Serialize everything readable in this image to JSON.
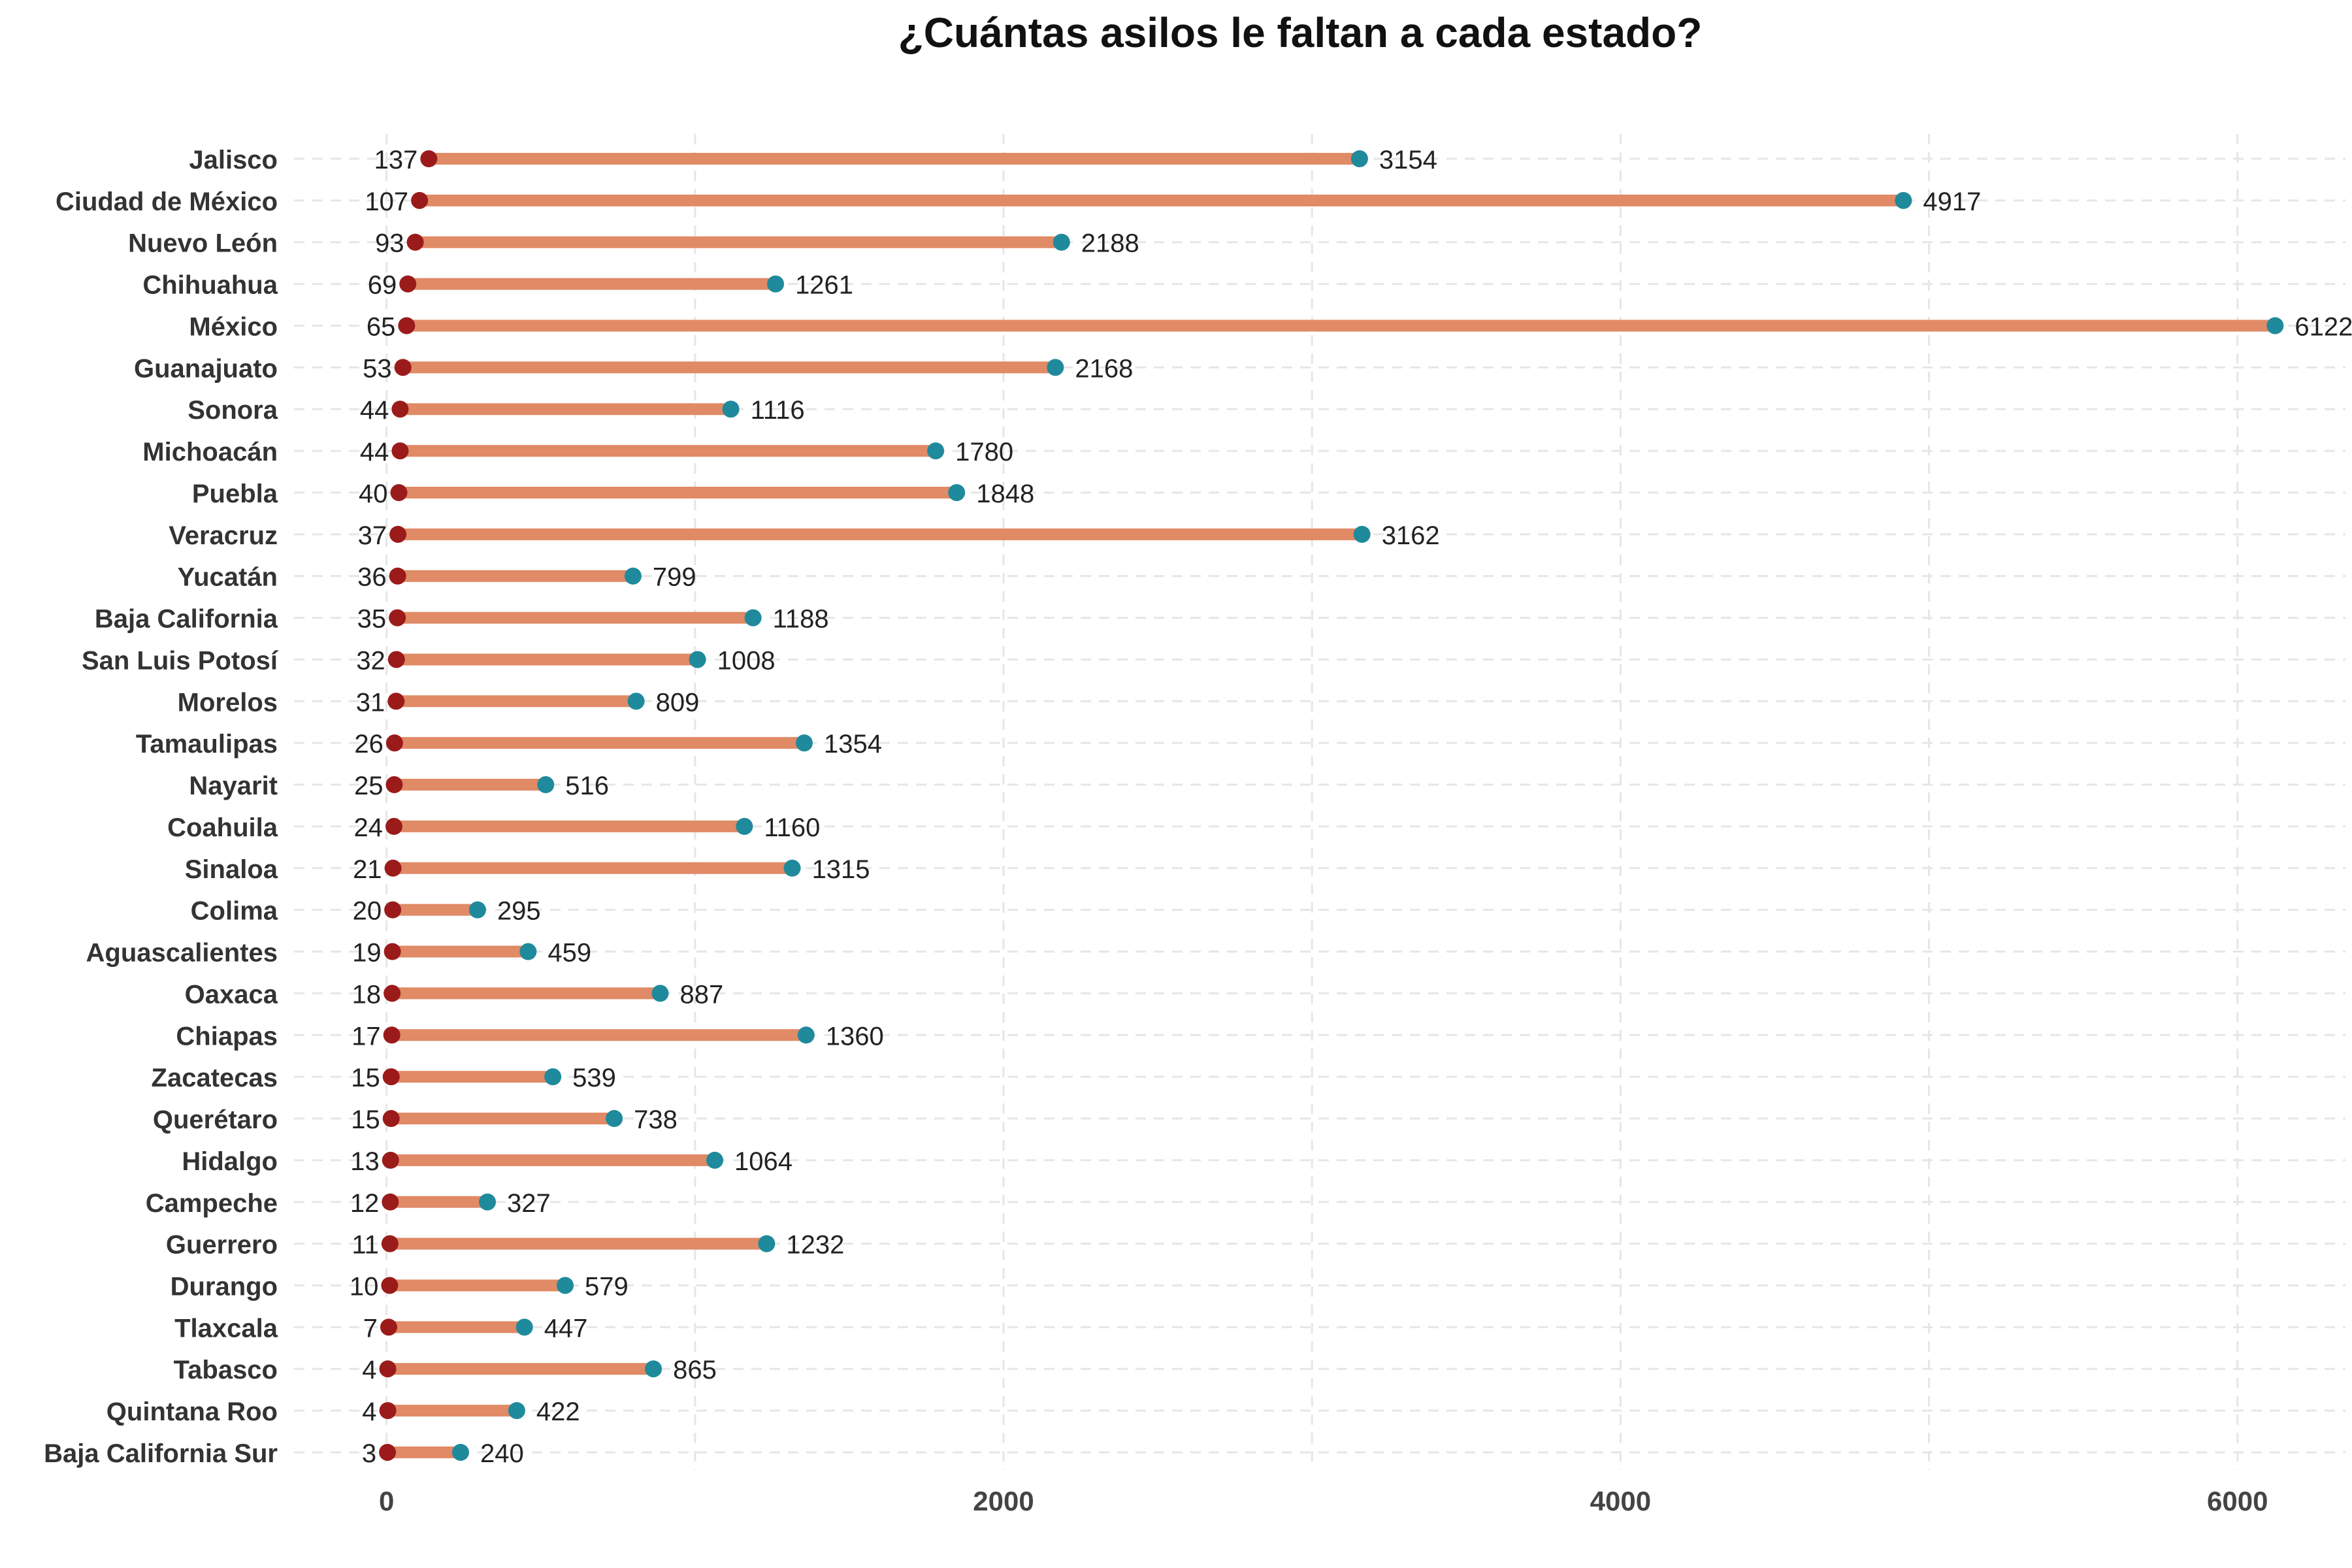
{
  "chart_data": {
    "type": "dumbbell",
    "title": "¿Cuántas asilos le faltan a cada estado?",
    "xlabel": "",
    "ylabel": "",
    "xlim": [
      -300,
      6350
    ],
    "x_ticks": [
      0,
      2000,
      4000,
      6000
    ],
    "x_tick_labels": [
      "0",
      "2000",
      "4000",
      "6000"
    ],
    "grid": true,
    "categories": [
      "Jalisco",
      "Ciudad de México",
      "Nuevo León",
      "Chihuahua",
      "México",
      "Guanajuato",
      "Sonora",
      "Michoacán",
      "Puebla",
      "Veracruz",
      "Yucatán",
      "Baja California",
      "San Luis Potosí",
      "Morelos",
      "Tamaulipas",
      "Nayarit",
      "Coahuila",
      "Sinaloa",
      "Colima",
      "Aguascalientes",
      "Oaxaca",
      "Chiapas",
      "Zacatecas",
      "Querétaro",
      "Hidalgo",
      "Campeche",
      "Guerrero",
      "Durango",
      "Tlaxcala",
      "Tabasco",
      "Quintana Roo",
      "Baja California Sur"
    ],
    "series": [
      {
        "color": "#9b1b1b",
        "values": [
          137,
          107,
          93,
          69,
          65,
          53,
          44,
          44,
          40,
          37,
          36,
          35,
          32,
          31,
          26,
          25,
          24,
          21,
          20,
          19,
          18,
          17,
          15,
          15,
          13,
          12,
          11,
          10,
          7,
          4,
          4,
          3
        ],
        "labels": [
          "137",
          "107",
          "93",
          "69",
          "65",
          "53",
          "44",
          "44",
          "40",
          "37",
          "36",
          "35",
          "32",
          "31",
          "26",
          "25",
          "24",
          "21",
          "20",
          "19",
          "18",
          "17",
          "15",
          "15",
          "13",
          "12",
          "11",
          "10",
          "7",
          "4",
          "4",
          "3"
        ]
      },
      {
        "color": "#1f8a9c",
        "values": [
          3154,
          4917,
          2188,
          1261,
          6122,
          2168,
          1116,
          1780,
          1848,
          3162,
          799,
          1188,
          1008,
          809,
          1354,
          516,
          1160,
          1315,
          295,
          459,
          887,
          1360,
          539,
          738,
          1064,
          327,
          1232,
          579,
          447,
          865,
          422,
          240
        ],
        "labels": [
          "3154",
          "4917",
          "2188",
          "1261",
          "6122",
          "2168",
          "1116",
          "1780",
          "1848",
          "3162",
          "799",
          "1188",
          "1008",
          "809",
          "1354",
          "516",
          "1160",
          "1315",
          "295",
          "459",
          "887",
          "1360",
          "539",
          "738",
          "1064",
          "327",
          "1232",
          "579",
          "447",
          "865",
          "422",
          "240"
        ]
      }
    ],
    "segment_color": "#e08a66"
  }
}
